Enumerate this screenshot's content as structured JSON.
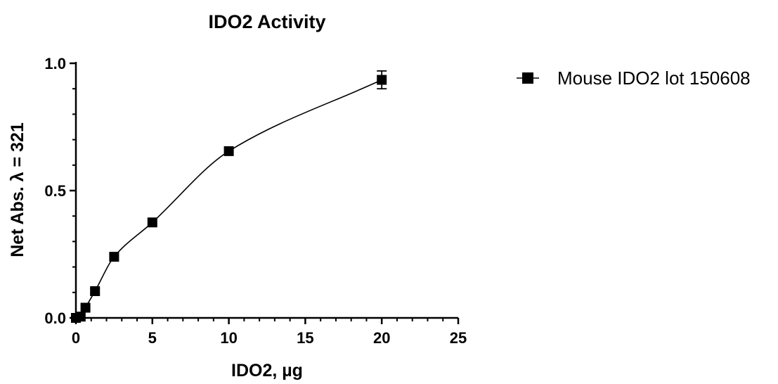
{
  "chart_data": {
    "type": "scatter",
    "title": "IDO2 Activity",
    "xlabel": "IDO2, µg",
    "ylabel": "Net Abs. λ = 321",
    "xlim": [
      0,
      25
    ],
    "ylim": [
      0,
      1.0
    ],
    "x_ticks": [
      "0",
      "5",
      "10",
      "15",
      "20",
      "25"
    ],
    "y_ticks": [
      "0.0",
      "0.5",
      "1.0"
    ],
    "grid": false,
    "legend_position": "right",
    "marker": "filled-square",
    "color": "#000000",
    "series": [
      {
        "name": "Mouse IDO2 lot 150608",
        "x": [
          0,
          0.3125,
          0.625,
          1.25,
          2.5,
          5,
          10,
          20
        ],
        "y": [
          0.0,
          0.005,
          0.04,
          0.105,
          0.24,
          0.375,
          0.655,
          0.935
        ],
        "error": [
          0,
          0,
          0,
          0.01,
          0,
          0,
          0,
          0.035
        ],
        "fit": "curve"
      }
    ]
  }
}
